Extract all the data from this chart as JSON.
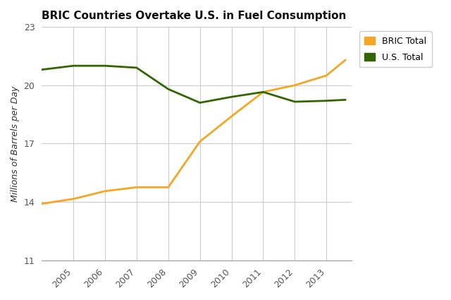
{
  "title": "BRIC Countries Overtake U.S. in Fuel Consumption",
  "ylabel": "Millions of Barrels per Day",
  "years": [
    2004,
    2004.5,
    2005,
    2006,
    2007,
    2007.5,
    2008,
    2008.5,
    2009,
    2009.5,
    2010,
    2011,
    2011.5,
    2012,
    2013,
    2013.6
  ],
  "bric": [
    13.9,
    14.1,
    14.15,
    14.55,
    14.75,
    14.75,
    14.75,
    14.6,
    17.1,
    17.9,
    18.4,
    19.65,
    19.65,
    20.0,
    20.5,
    21.3
  ],
  "us": [
    20.8,
    20.9,
    21.0,
    21.0,
    20.9,
    20.3,
    19.8,
    19.3,
    19.1,
    19.35,
    19.4,
    19.65,
    19.3,
    19.15,
    19.2,
    19.25
  ],
  "years_simple": [
    2004,
    2005,
    2006,
    2007,
    2008,
    2009,
    2010,
    2011,
    2012,
    2013,
    2013.6
  ],
  "bric_simple": [
    13.9,
    14.15,
    14.55,
    14.75,
    14.75,
    17.1,
    18.4,
    19.65,
    20.0,
    20.5,
    21.3
  ],
  "us_simple": [
    20.8,
    21.0,
    21.0,
    20.9,
    19.8,
    19.1,
    19.4,
    19.65,
    19.15,
    19.2,
    19.25
  ],
  "bric_color": "#F5A623",
  "us_color": "#336600",
  "background_color": "#ffffff",
  "grid_color": "#cccccc",
  "ylim": [
    11,
    23
  ],
  "yticks": [
    11,
    14,
    17,
    20,
    23
  ],
  "xlim": [
    2004,
    2013.8
  ],
  "xticks": [
    2005,
    2006,
    2007,
    2008,
    2009,
    2010,
    2011,
    2012,
    2013
  ],
  "legend_labels": [
    "BRIC Total",
    "U.S. Total"
  ],
  "line_width": 2.0
}
